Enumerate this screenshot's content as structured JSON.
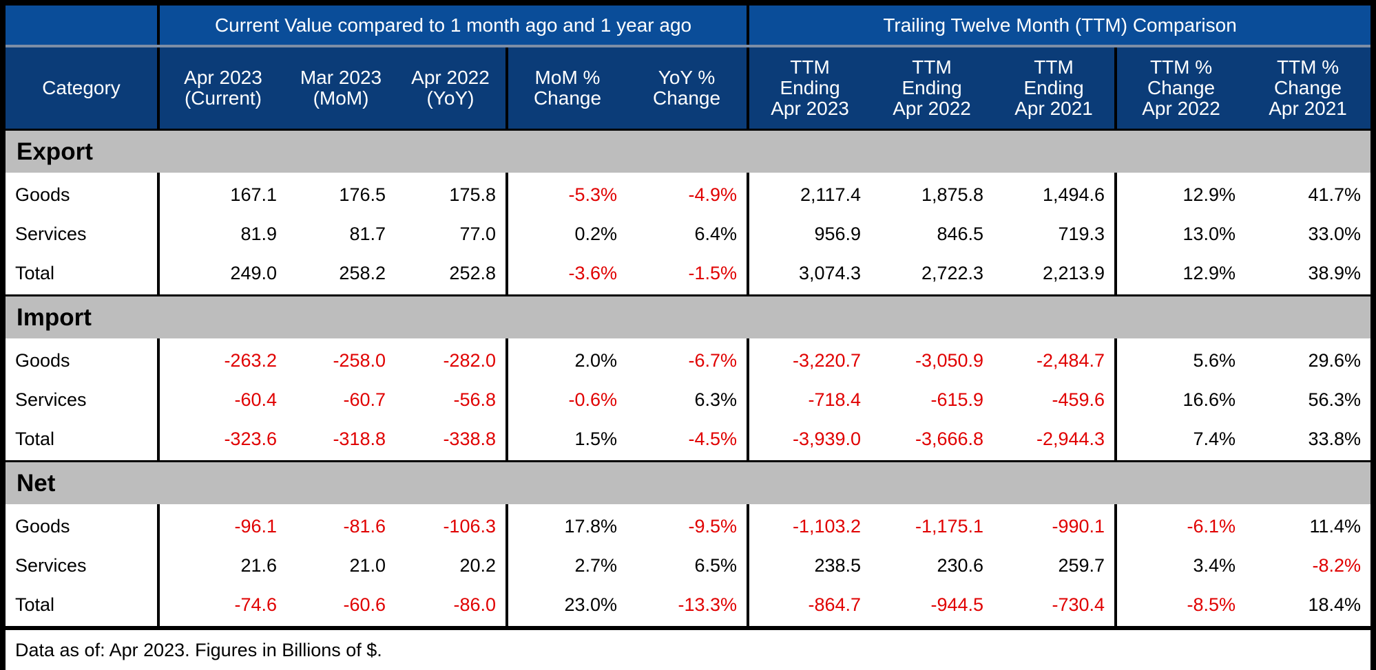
{
  "chart_data": {
    "type": "table",
    "group_headers": [
      "",
      "Current Value compared to 1 month ago and 1 year ago",
      "Trailing Twelve Month (TTM) Comparison"
    ],
    "columns": [
      "Category",
      "Apr 2023\n(Current)",
      "Mar 2023\n(MoM)",
      "Apr 2022\n(YoY)",
      "MoM %\nChange",
      "YoY %\nChange",
      "TTM\nEnding\nApr 2023",
      "TTM\nEnding\nApr 2022",
      "TTM\nEnding\nApr 2021",
      "TTM %\nChange\nApr 2022",
      "TTM %\nChange\nApr 2021"
    ],
    "sections": [
      {
        "name": "Export",
        "rows": [
          {
            "label": "Goods",
            "values": [
              "167.1",
              "176.5",
              "175.8",
              "-5.3%",
              "-4.9%",
              "2,117.4",
              "1,875.8",
              "1,494.6",
              "12.9%",
              "41.7%"
            ]
          },
          {
            "label": "Services",
            "values": [
              "81.9",
              "81.7",
              "77.0",
              "0.2%",
              "6.4%",
              "956.9",
              "846.5",
              "719.3",
              "13.0%",
              "33.0%"
            ]
          },
          {
            "label": "Total",
            "values": [
              "249.0",
              "258.2",
              "252.8",
              "-3.6%",
              "-1.5%",
              "3,074.3",
              "2,722.3",
              "2,213.9",
              "12.9%",
              "38.9%"
            ]
          }
        ]
      },
      {
        "name": "Import",
        "rows": [
          {
            "label": "Goods",
            "values": [
              "-263.2",
              "-258.0",
              "-282.0",
              "2.0%",
              "-6.7%",
              "-3,220.7",
              "-3,050.9",
              "-2,484.7",
              "5.6%",
              "29.6%"
            ]
          },
          {
            "label": "Services",
            "values": [
              "-60.4",
              "-60.7",
              "-56.8",
              "-0.6%",
              "6.3%",
              "-718.4",
              "-615.9",
              "-459.6",
              "16.6%",
              "56.3%"
            ]
          },
          {
            "label": "Total",
            "values": [
              "-323.6",
              "-318.8",
              "-338.8",
              "1.5%",
              "-4.5%",
              "-3,939.0",
              "-3,666.8",
              "-2,944.3",
              "7.4%",
              "33.8%"
            ]
          }
        ]
      },
      {
        "name": "Net",
        "rows": [
          {
            "label": "Goods",
            "values": [
              "-96.1",
              "-81.6",
              "-106.3",
              "17.8%",
              "-9.5%",
              "-1,103.2",
              "-1,175.1",
              "-990.1",
              "-6.1%",
              "11.4%"
            ]
          },
          {
            "label": "Services",
            "values": [
              "21.6",
              "21.0",
              "20.2",
              "2.7%",
              "6.5%",
              "238.5",
              "230.6",
              "259.7",
              "3.4%",
              "-8.2%"
            ]
          },
          {
            "label": "Total",
            "values": [
              "-74.6",
              "-60.6",
              "-86.0",
              "23.0%",
              "-13.3%",
              "-864.7",
              "-944.5",
              "-730.4",
              "-8.5%",
              "18.4%"
            ]
          }
        ]
      }
    ],
    "footnote": "Data as of: Apr 2023. Figures in Billions of $.",
    "colors": {
      "header_group": "#0a4d99",
      "header_cols": "#0b3c78",
      "section_bg": "#bdbdbd",
      "negative": "#e00000",
      "positive": "#000000"
    }
  }
}
